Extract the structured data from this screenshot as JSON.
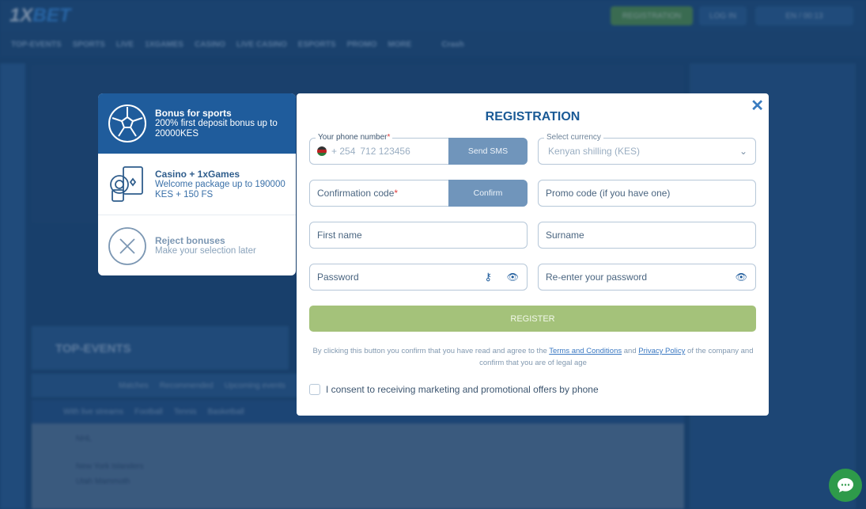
{
  "background": {
    "logo_prefix": "1X",
    "logo_suffix": "BET",
    "header_buttons": {
      "registration": "REGISTRATION",
      "login": "LOG IN",
      "lang": "EN / 00:13"
    },
    "nav": [
      "TOP-EVENTS",
      "SPORTS",
      "LIVE",
      "1XGAMES",
      "CASINO",
      "LIVE CASINO",
      "ESPORTS",
      "PROMO",
      "MORE",
      "Crash"
    ],
    "top_events": "TOP-EVENTS",
    "tabs": [
      "Matches",
      "Recommended",
      "Upcoming events"
    ],
    "filters": [
      "With live streams",
      "Football",
      "Tennis",
      "Basketball"
    ],
    "league": "NHL",
    "teams": [
      "New York Islanders",
      "Utah Mammoth"
    ]
  },
  "bonus": [
    {
      "title": "Bonus for sports",
      "desc": "200% first deposit bonus up to 20000KES",
      "icon": "soccer-ball-icon",
      "selected": true
    },
    {
      "title": "Casino + 1xGames",
      "desc": "Welcome package up to 190000 KES + 150 FS",
      "icon": "casino-chips-cards-icon",
      "selected": false
    },
    {
      "title": "Reject bonuses",
      "desc": "Make your selection later",
      "icon": "close-circle-icon",
      "selected": false
    }
  ],
  "modal": {
    "title": "REGISTRATION",
    "phone": {
      "label": "Your phone number",
      "required": "*",
      "code": "+ 254",
      "placeholder": "712 123456",
      "button": "Send SMS"
    },
    "currency": {
      "label": "Select currency",
      "value": "Kenyan shilling (KES)"
    },
    "confirmation": {
      "placeholder": "Confirmation code",
      "required": "*",
      "button": "Confirm"
    },
    "promo": {
      "placeholder": "Promo code (if you have one)"
    },
    "first_name": {
      "placeholder": "First name"
    },
    "surname": {
      "placeholder": "Surname"
    },
    "password": {
      "placeholder": "Password"
    },
    "repassword": {
      "placeholder": "Re-enter your password"
    },
    "register": "REGISTER",
    "legal": {
      "pre": "By clicking this button you confirm that you have read and agree to the ",
      "terms": "Terms and Conditions",
      "mid": " and ",
      "privacy": "Privacy Policy",
      "post": " of the company and confirm that you are of legal age"
    },
    "consent": "I consent to receiving marketing and promotional offers by phone"
  },
  "colors": {
    "accent": "#1f5c9c",
    "register": "#a4c27a",
    "chat": "#2e9a4a"
  }
}
